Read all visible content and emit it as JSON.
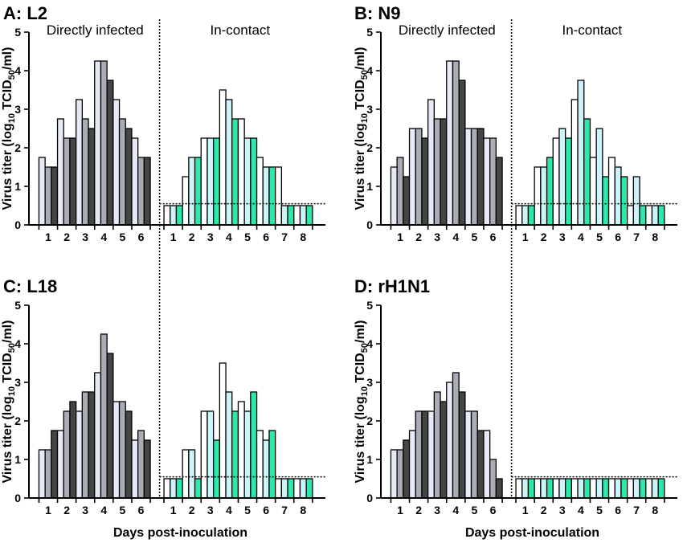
{
  "figure": {
    "ylabel_prefix": "Virus titer (log",
    "ylabel_sub1": "10",
    "ylabel_mid": " TCID",
    "ylabel_sub2": "50",
    "ylabel_suffix": "/ml)",
    "xlabel": "Days post-inoculation"
  },
  "colors": {
    "direct": [
      "#e6e9f6",
      "#a9abb5",
      "#454545"
    ],
    "contact": [
      "#ffffff",
      "#ccf3f8",
      "#2ee7aa"
    ],
    "stroke": "#000000"
  },
  "chart_data": [
    {
      "type": "bar",
      "title": "A: L2",
      "group_labels": [
        "Directly infected",
        "In-contact"
      ],
      "direct_days": [
        "1",
        "2",
        "3",
        "4",
        "5",
        "6"
      ],
      "contact_days": [
        "1",
        "2",
        "3",
        "4",
        "5",
        "6",
        "7",
        "8"
      ],
      "ylim": [
        0,
        5
      ],
      "yticks": [
        "0",
        "1",
        "2",
        "3",
        "4",
        "5"
      ],
      "detection_limit": 0.55,
      "direct": [
        [
          1.75,
          1.5,
          1.5
        ],
        [
          2.75,
          2.25,
          2.25
        ],
        [
          3.25,
          2.75,
          2.5
        ],
        [
          4.25,
          4.25,
          3.75
        ],
        [
          3.25,
          2.75,
          2.5
        ],
        [
          2.25,
          1.75,
          1.75
        ]
      ],
      "contact": [
        [
          0.5,
          0.5,
          0.5
        ],
        [
          1.25,
          1.75,
          1.75
        ],
        [
          2.25,
          2.25,
          2.25
        ],
        [
          3.5,
          3.25,
          2.75
        ],
        [
          2.75,
          2.25,
          2.25
        ],
        [
          1.75,
          1.5,
          1.5
        ],
        [
          1.5,
          0.5,
          0.5
        ],
        [
          0.5,
          0.5,
          0.5
        ]
      ]
    },
    {
      "type": "bar",
      "title": "B: N9",
      "group_labels": [
        "Directly infected",
        "In-contact"
      ],
      "direct_days": [
        "1",
        "2",
        "3",
        "4",
        "5",
        "6"
      ],
      "contact_days": [
        "1",
        "2",
        "3",
        "4",
        "5",
        "6",
        "7",
        "8"
      ],
      "ylim": [
        0,
        5
      ],
      "yticks": [
        "0",
        "1",
        "2",
        "3",
        "4",
        "5"
      ],
      "detection_limit": 0.55,
      "direct": [
        [
          1.5,
          1.75,
          1.25
        ],
        [
          2.5,
          2.5,
          2.25
        ],
        [
          3.25,
          2.75,
          2.75
        ],
        [
          4.25,
          4.25,
          3.75
        ],
        [
          2.5,
          2.5,
          2.5
        ],
        [
          2.25,
          2.25,
          1.75
        ]
      ],
      "contact": [
        [
          0.5,
          0.5,
          0.5
        ],
        [
          1.5,
          1.5,
          1.75
        ],
        [
          2.25,
          2.5,
          2.25
        ],
        [
          3.25,
          3.75,
          2.75
        ],
        [
          1.75,
          2.5,
          1.25
        ],
        [
          1.75,
          1.5,
          1.25
        ],
        [
          0.5,
          1.25,
          0.5
        ],
        [
          0.5,
          0.5,
          0.5
        ]
      ]
    },
    {
      "type": "bar",
      "title": "C: L18",
      "group_labels": [],
      "direct_days": [
        "1",
        "2",
        "3",
        "4",
        "5",
        "6"
      ],
      "contact_days": [
        "1",
        "2",
        "3",
        "4",
        "5",
        "6",
        "7",
        "8"
      ],
      "ylim": [
        0,
        5
      ],
      "yticks": [
        "0",
        "1",
        "2",
        "3",
        "4",
        "5"
      ],
      "detection_limit": 0.55,
      "direct": [
        [
          1.25,
          1.25,
          1.75
        ],
        [
          1.75,
          2.25,
          2.5
        ],
        [
          2.25,
          2.75,
          2.75
        ],
        [
          3.25,
          4.25,
          3.75
        ],
        [
          2.5,
          2.5,
          2.25
        ],
        [
          1.5,
          1.75,
          1.5
        ]
      ],
      "contact": [
        [
          0.5,
          0.5,
          0.5
        ],
        [
          1.25,
          1.25,
          0.5
        ],
        [
          2.25,
          2.25,
          1.5
        ],
        [
          3.5,
          2.75,
          2.25
        ],
        [
          2.5,
          2.25,
          2.75
        ],
        [
          1.75,
          1.5,
          1.75
        ],
        [
          0.5,
          0.5,
          0.5
        ],
        [
          0.5,
          0.5,
          0.5
        ]
      ]
    },
    {
      "type": "bar",
      "title": "D: rH1N1",
      "group_labels": [],
      "direct_days": [
        "1",
        "2",
        "3",
        "4",
        "5",
        "6"
      ],
      "contact_days": [
        "1",
        "2",
        "3",
        "4",
        "5",
        "6",
        "7",
        "8"
      ],
      "ylim": [
        0,
        5
      ],
      "yticks": [
        "0",
        "1",
        "2",
        "3",
        "4",
        "5"
      ],
      "detection_limit": 0.55,
      "direct": [
        [
          1.25,
          1.25,
          1.5
        ],
        [
          1.75,
          2.25,
          2.25
        ],
        [
          2.25,
          2.75,
          2.5
        ],
        [
          3.0,
          3.25,
          2.75
        ],
        [
          2.25,
          2.25,
          1.75
        ],
        [
          1.75,
          1.0,
          0.5
        ]
      ],
      "contact": [
        [
          0.5,
          0.5,
          0.5
        ],
        [
          0.5,
          0.5,
          0.5
        ],
        [
          0.5,
          0.5,
          0.5
        ],
        [
          0.5,
          0.5,
          0.5
        ],
        [
          0.5,
          0.5,
          0.5
        ],
        [
          0.5,
          0.5,
          0.5
        ],
        [
          0.5,
          0.5,
          0.5
        ],
        [
          0.5,
          0.5,
          0.5
        ]
      ]
    }
  ]
}
